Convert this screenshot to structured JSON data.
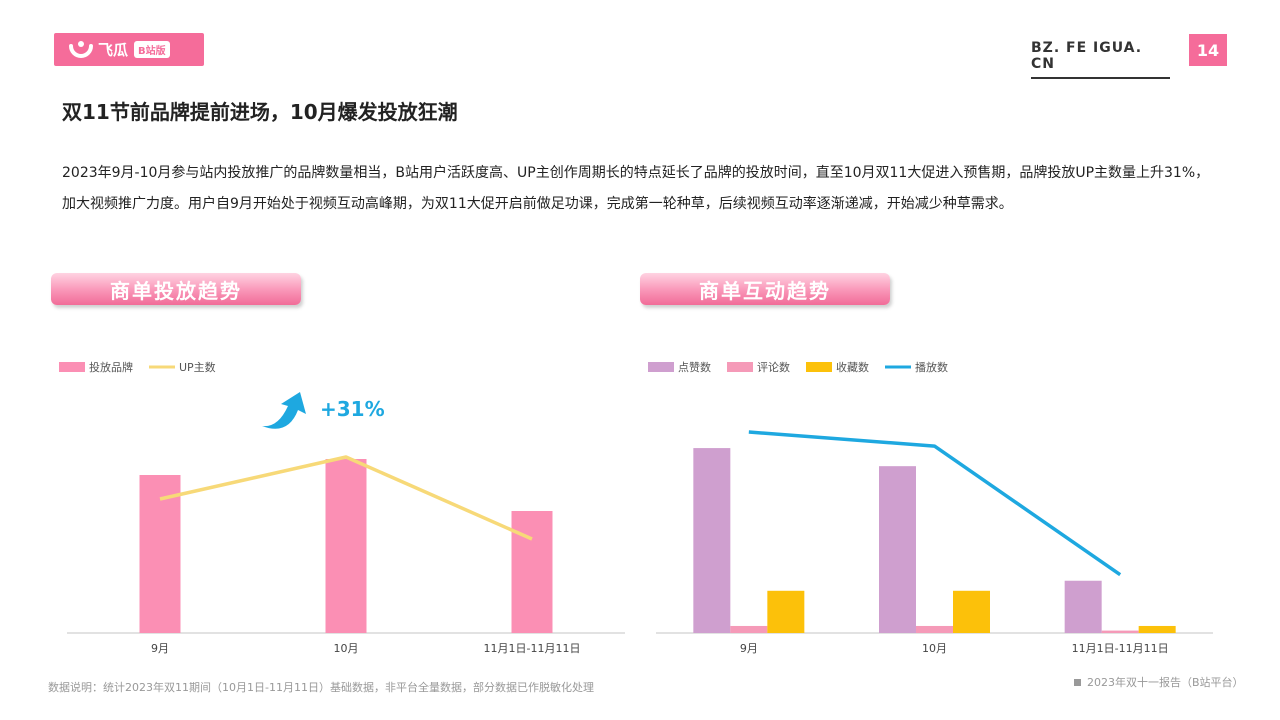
{
  "header": {
    "logo_text": "飞瓜",
    "logo_badge": "B站版",
    "site": "BZ. FE IGUA. CN",
    "page_number": "14",
    "accent_color": "#f56c9a"
  },
  "headline": "双11节前品牌提前进场，10月爆发投放狂潮",
  "paragraph": "2023年9月-10月参与站内投放推广的品牌数量相当，B站用户活跃度高、UP主创作周期长的特点延长了品牌的投放时间，直至10月双11大促进入预售期，品牌投放UP主数量上升31%，加大视频推广力度。用户自9月开始处于视频互动高峰期，为双11大促开启前做足功课，完成第一轮种草，后续视频互动率逐渐递减，开始减少种草需求。",
  "sections": {
    "left_title": "商单投放趋势",
    "right_title": "商单互动趋势"
  },
  "footer": {
    "note": "数据说明：统计2023年双11期间（10月1日-11月11日）基础数据，非平台全量数据，部分数据已作脱敏化处理",
    "source": "2023年双十一报告（B站平台）"
  },
  "chart_data": [
    {
      "type": "bar",
      "categories": [
        "9月",
        "10月",
        "11月1日-11月11日"
      ],
      "series": [
        {
          "name": "投放品牌",
          "kind": "bar",
          "color": "#fb8fb4",
          "values": [
            79,
            87,
            61
          ]
        },
        {
          "name": "UP主数",
          "kind": "line",
          "color": "#f7d978",
          "values": [
            67,
            88,
            47
          ]
        }
      ],
      "ylim": [
        0,
        100
      ],
      "annotation": "+31%",
      "annotation_color": "#1ea8e0",
      "legend": "top-left",
      "grid": false
    },
    {
      "type": "bar",
      "categories": [
        "9月",
        "10月",
        "11月1日-11月11日"
      ],
      "series": [
        {
          "name": "点赞数",
          "kind": "bar",
          "color": "#cf9fcf",
          "values": [
            92,
            83,
            26
          ]
        },
        {
          "name": "评论数",
          "kind": "bar",
          "color": "#f59ab8",
          "values": [
            3.5,
            3.5,
            1.2
          ]
        },
        {
          "name": "收藏数",
          "kind": "bar",
          "color": "#fcc10a",
          "values": [
            21,
            21,
            3.5
          ]
        },
        {
          "name": "播放数",
          "kind": "line",
          "color": "#1ea8e0",
          "values": [
            100,
            93,
            29
          ]
        }
      ],
      "ylim": [
        0,
        100
      ],
      "legend": "top-left",
      "grid": false
    }
  ]
}
